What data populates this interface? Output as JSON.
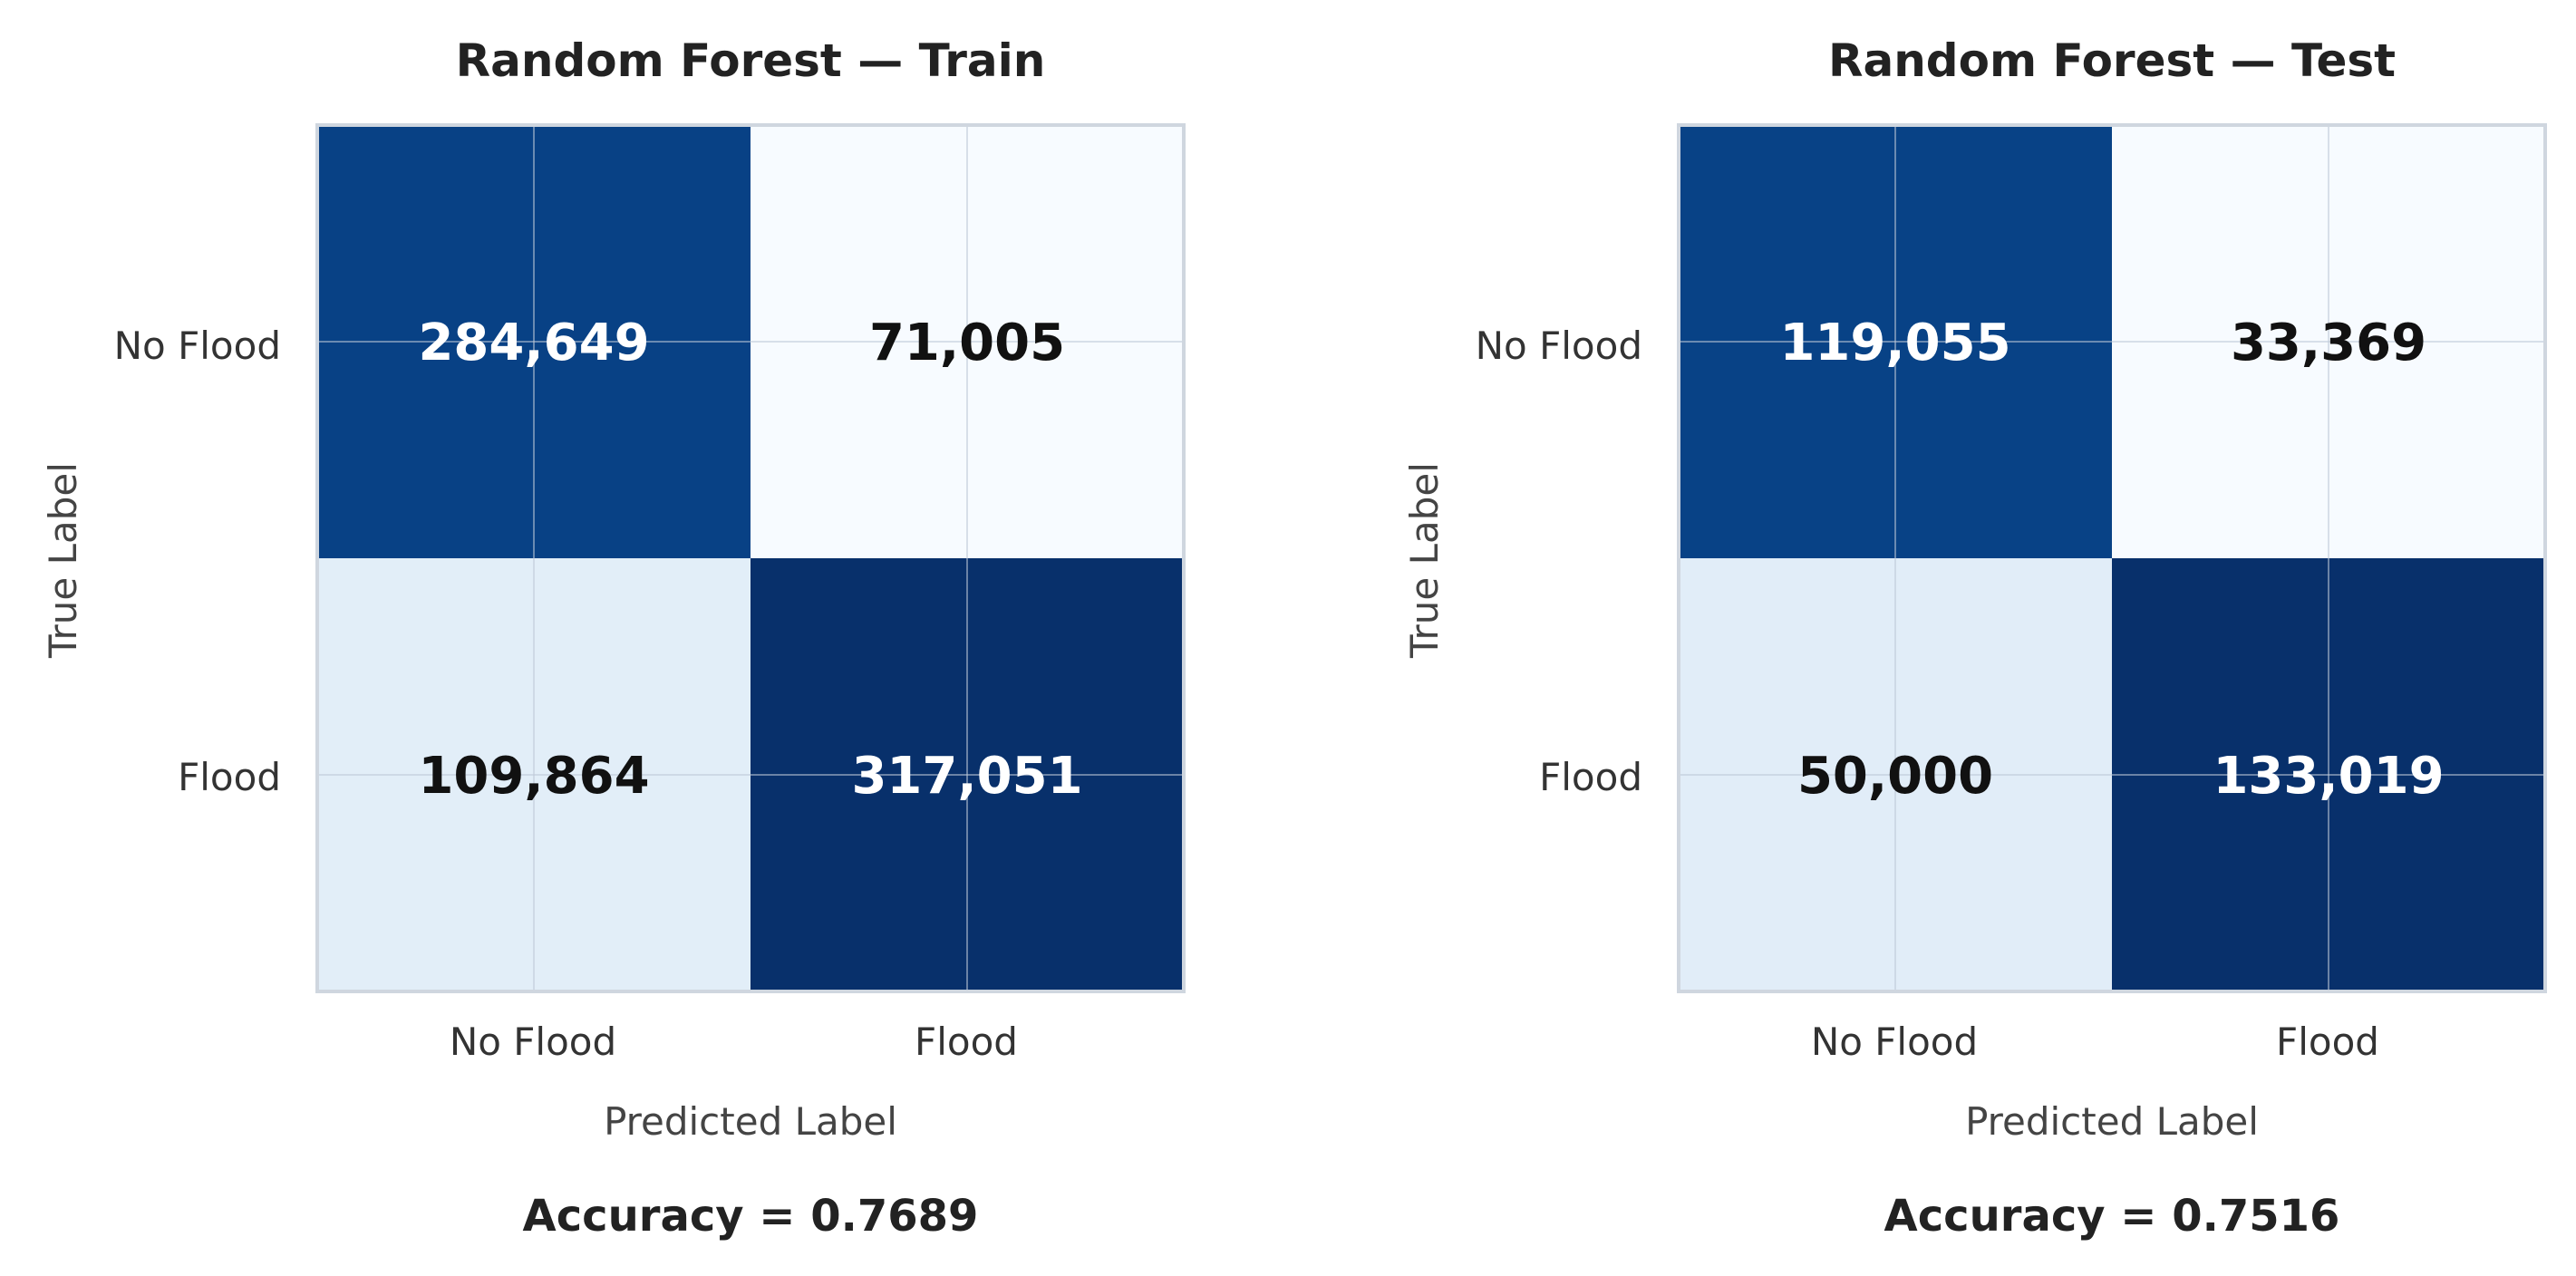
{
  "chart_data": [
    {
      "type": "heatmap",
      "title": "Random Forest — Train",
      "xlabel": "Predicted Label",
      "ylabel": "True Label",
      "x_categories": [
        "No Flood",
        "Flood"
      ],
      "y_categories": [
        "No Flood",
        "Flood"
      ],
      "values": [
        [
          284649,
          71005
        ],
        [
          109864,
          317051
        ]
      ],
      "value_labels": [
        [
          "284,649",
          "71,005"
        ],
        [
          "109,864",
          "317,051"
        ]
      ],
      "colormap": "Blues",
      "footer": "Accuracy = 0.7689",
      "accuracy": 0.7689,
      "grid": true,
      "colors": {
        "high": "#08306b",
        "mid_high": "#08519c",
        "low": "#f7fbff",
        "mid_low": "#d6e6f4",
        "text_dark_bg": "#ffffff",
        "text_light_bg": "#111111"
      }
    },
    {
      "type": "heatmap",
      "title": "Random Forest — Test",
      "xlabel": "Predicted Label",
      "ylabel": "True Label",
      "x_categories": [
        "No Flood",
        "Flood"
      ],
      "y_categories": [
        "No Flood",
        "Flood"
      ],
      "values": [
        [
          119055,
          33369
        ],
        [
          50000,
          133019
        ]
      ],
      "value_labels": [
        [
          "119,055",
          "33,369"
        ],
        [
          "50,000",
          "133,019"
        ]
      ],
      "colormap": "Blues",
      "footer": "Accuracy = 0.7516",
      "accuracy": 0.7516,
      "grid": true,
      "colors": {
        "high": "#08306b",
        "mid_high": "#08519c",
        "low": "#f7fbff",
        "mid_low": "#d6e6f4",
        "text_dark_bg": "#ffffff",
        "text_light_bg": "#111111"
      }
    }
  ]
}
